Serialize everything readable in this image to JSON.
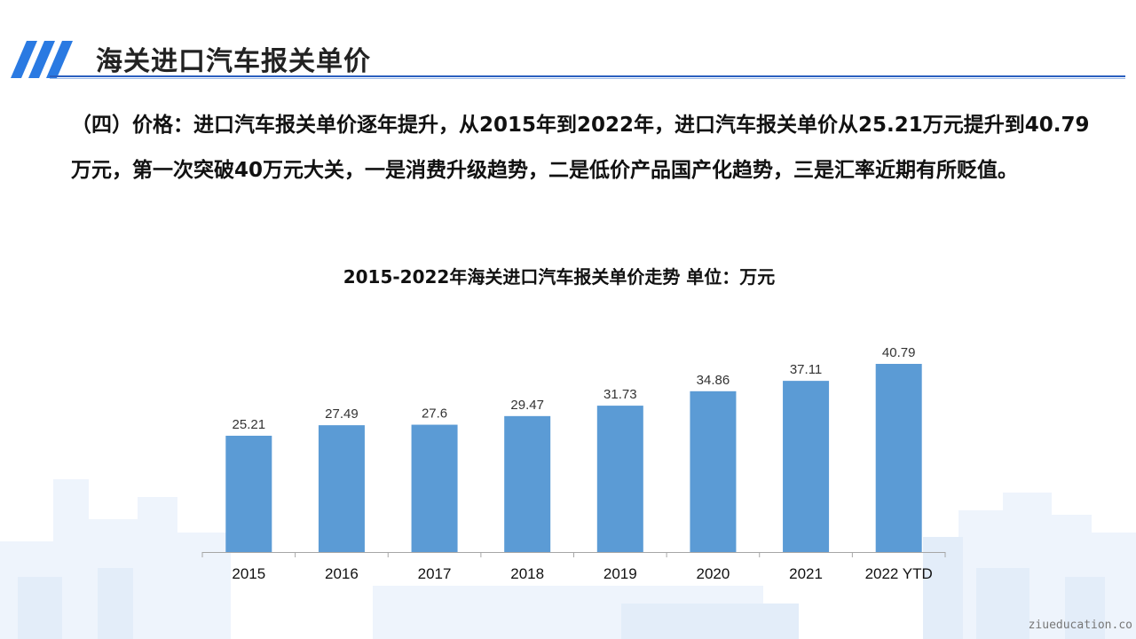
{
  "slide": {
    "title": "海关进口汽车报关单价",
    "body": "（四）价格：进口汽车报关单价逐年提升，从2015年到2022年，进口汽车报关单价从25.21万元提升到40.79万元，第一次突破40万元大关，一是消费升级趋势，二是低价产品国产化趋势，三是汇率近期有所贬值。",
    "watermark": "ziueducation.co",
    "accent_color": "#2a5fbf"
  },
  "chart_data": {
    "type": "bar",
    "title": "2015-2022年海关进口汽车报关单价走势 单位：万元",
    "categories": [
      "2015",
      "2016",
      "2017",
      "2018",
      "2019",
      "2020",
      "2021",
      "2022 YTD"
    ],
    "values": [
      25.21,
      27.49,
      27.6,
      29.47,
      31.73,
      34.86,
      37.11,
      40.79
    ],
    "value_labels": [
      "25.21",
      "27.49",
      "27.6",
      "29.47",
      "31.73",
      "34.86",
      "37.11",
      "40.79"
    ],
    "xlabel": "",
    "ylabel": "",
    "ylim": [
      0,
      40.79
    ],
    "grid": false,
    "legend": "none",
    "bar_color": "#5b9bd5",
    "axis_color": "#a6a6a6"
  }
}
